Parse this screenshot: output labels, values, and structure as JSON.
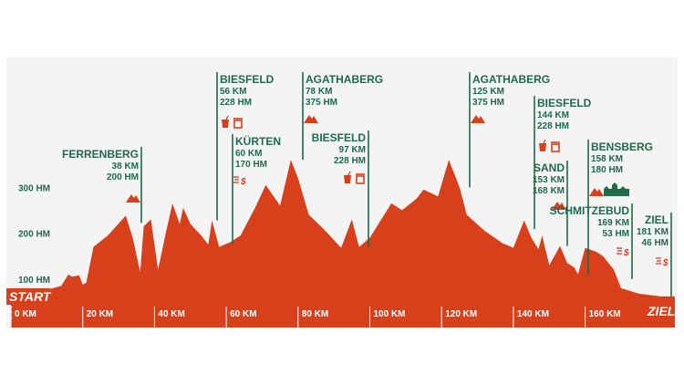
{
  "chart_data": {
    "type": "area",
    "x_unit": "KM",
    "y_unit": "HM",
    "xlim": [
      0,
      185
    ],
    "ylim": [
      40,
      400
    ],
    "y_ticks": [
      {
        "value": 100,
        "label": "100 HM"
      },
      {
        "value": 200,
        "label": "200 HM"
      },
      {
        "value": 300,
        "label": "300 HM"
      }
    ],
    "x_ticks": [
      {
        "value": 0,
        "label": "0 KM"
      },
      {
        "value": 20,
        "label": "20 KM"
      },
      {
        "value": 40,
        "label": "40 KM"
      },
      {
        "value": 60,
        "label": "60 KM"
      },
      {
        "value": 80,
        "label": "80 KM"
      },
      {
        "value": 100,
        "label": "100 KM"
      },
      {
        "value": 120,
        "label": "120 KM"
      },
      {
        "value": 140,
        "label": "140 KM"
      },
      {
        "value": 160,
        "label": "160 KM"
      }
    ],
    "start_label": "START",
    "end_label": "ZIEL",
    "profile": [
      [
        0,
        65
      ],
      [
        8,
        72
      ],
      [
        14,
        85
      ],
      [
        16,
        110
      ],
      [
        17,
        105
      ],
      [
        19,
        108
      ],
      [
        20,
        88
      ],
      [
        21,
        92
      ],
      [
        23,
        170
      ],
      [
        27,
        195
      ],
      [
        32,
        238
      ],
      [
        34,
        188
      ],
      [
        36,
        115
      ],
      [
        37,
        215
      ],
      [
        39,
        230
      ],
      [
        41,
        120
      ],
      [
        43,
        195
      ],
      [
        45,
        265
      ],
      [
        47,
        220
      ],
      [
        48,
        255
      ],
      [
        50,
        220
      ],
      [
        53,
        195
      ],
      [
        55,
        175
      ],
      [
        56,
        228
      ],
      [
        58,
        170
      ],
      [
        61,
        180
      ],
      [
        64,
        195
      ],
      [
        68,
        255
      ],
      [
        71,
        305
      ],
      [
        75,
        260
      ],
      [
        78,
        360
      ],
      [
        80,
        320
      ],
      [
        83,
        240
      ],
      [
        87,
        210
      ],
      [
        92,
        168
      ],
      [
        95,
        230
      ],
      [
        97,
        170
      ],
      [
        100,
        190
      ],
      [
        106,
        265
      ],
      [
        109,
        250
      ],
      [
        113,
        275
      ],
      [
        115,
        295
      ],
      [
        119,
        280
      ],
      [
        122,
        360
      ],
      [
        125,
        300
      ],
      [
        127,
        240
      ],
      [
        132,
        205
      ],
      [
        137,
        178
      ],
      [
        140,
        168
      ],
      [
        143,
        228
      ],
      [
        145,
        190
      ],
      [
        147,
        165
      ],
      [
        148,
        195
      ],
      [
        150,
        130
      ],
      [
        153,
        172
      ],
      [
        155,
        135
      ],
      [
        157,
        125
      ],
      [
        158,
        110
      ],
      [
        160,
        168
      ],
      [
        163,
        160
      ],
      [
        165,
        150
      ],
      [
        168,
        120
      ],
      [
        170,
        80
      ],
      [
        175,
        68
      ],
      [
        181,
        62
      ],
      [
        185,
        62
      ]
    ],
    "waypoints": [
      {
        "name": "FERRENBERG",
        "km_label": "38 KM",
        "hm_label": "200 HM",
        "x": 38,
        "icons": [
          "mountain-icon"
        ]
      },
      {
        "name": "BIESFELD",
        "km_label": "56 KM",
        "hm_label": "228 HM",
        "x": 56,
        "icons": [
          "drink-icon",
          "food-icon"
        ]
      },
      {
        "name": "KÜRTEN",
        "km_label": "60 KM",
        "hm_label": "170 HM",
        "x": 60,
        "icons": [
          "sprint-icon"
        ]
      },
      {
        "name": "AGATHABERG",
        "km_label": "78 KM",
        "hm_label": "375 HM",
        "x": 78,
        "icons": [
          "mountain-icon"
        ]
      },
      {
        "name": "BIESFELD",
        "km_label": "97 KM",
        "hm_label": "228 HM",
        "x": 97,
        "icons": [
          "drink-icon",
          "food-icon"
        ]
      },
      {
        "name": "AGATHABERG",
        "km_label": "125 KM",
        "hm_label": "375 HM",
        "x": 125,
        "icons": [
          "mountain-icon"
        ]
      },
      {
        "name": "BIESFELD",
        "km_label": "144 KM",
        "hm_label": "228 HM",
        "x": 144,
        "icons": [
          "drink-icon",
          "food-icon"
        ]
      },
      {
        "name": "SAND",
        "km_label": "153 KM",
        "hm_label": "168 KM",
        "x": 153,
        "icons": [
          "mountain-icon"
        ]
      },
      {
        "name": "BENSBERG",
        "km_label": "158 KM",
        "hm_label": "180 HM",
        "x": 158,
        "icons": [
          "mountain-icon",
          "castle-icon"
        ]
      },
      {
        "name": "SCHMITZEBUD",
        "km_label": "169 KM",
        "hm_label": "53 HM",
        "x": 169,
        "icons": [
          "sprint-icon"
        ]
      },
      {
        "name": "ZIEL",
        "km_label": "181 KM",
        "hm_label": "46 HM",
        "x": 181,
        "icons": [
          "sprint-icon"
        ]
      }
    ],
    "colors": {
      "profile": "#d8401c",
      "text": "#1f6a4a",
      "background": "#f4f4f4"
    }
  }
}
